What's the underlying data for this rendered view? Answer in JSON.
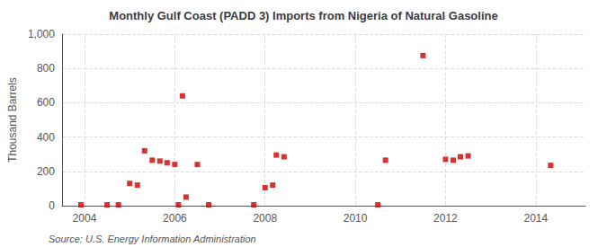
{
  "chart_data": {
    "type": "scatter",
    "title": "Monthly Gulf Coast (PADD 3) Imports from Nigeria of Natural Gasoline",
    "ylabel": "Thousand Barrels",
    "annotations": [
      "Source: U.S. Energy Information Administration"
    ],
    "color": "#cc0000",
    "marker": "square",
    "grid": true,
    "xlim": [
      2003.5,
      2015.1
    ],
    "xticks": [
      2004,
      2006,
      2008,
      2010,
      2012,
      2014
    ],
    "ylim": [
      0,
      1000
    ],
    "yticks": [
      0,
      200,
      400,
      600,
      800,
      {
        "value": 1000,
        "label": "1,000"
      }
    ],
    "x": [
      2003.92,
      2004.5,
      2004.75,
      2005.0,
      2005.17,
      2005.33,
      2005.5,
      2005.67,
      2005.83,
      2006.0,
      2006.08,
      2006.17,
      2006.25,
      2006.5,
      2006.75,
      2007.75,
      2008.0,
      2008.17,
      2008.25,
      2008.42,
      2010.5,
      2010.67,
      2011.5,
      2012.0,
      2012.17,
      2012.33,
      2012.5,
      2014.33
    ],
    "values": [
      5,
      5,
      5,
      130,
      120,
      320,
      265,
      260,
      250,
      240,
      5,
      640,
      50,
      240,
      5,
      5,
      105,
      120,
      295,
      285,
      5,
      265,
      875,
      270,
      265,
      285,
      290,
      235
    ]
  }
}
